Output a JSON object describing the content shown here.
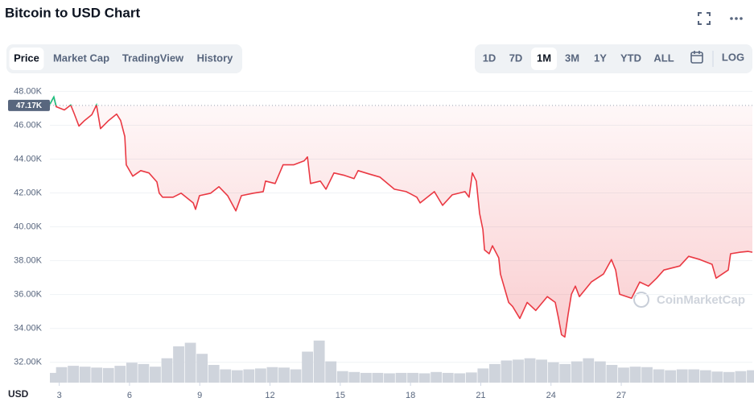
{
  "header": {
    "title": "Bitcoin to USD Chart"
  },
  "tabs": {
    "items": [
      "Price",
      "Market Cap",
      "TradingView",
      "History"
    ],
    "active": 0
  },
  "ranges": {
    "items": [
      "1D",
      "7D",
      "1M",
      "3M",
      "1Y",
      "YTD",
      "ALL"
    ],
    "active": 2,
    "log": "LOG"
  },
  "chart_data": {
    "type": "line",
    "color": "#ea3943",
    "up_color": "#16c784",
    "x": [
      2.6,
      2.77,
      2.87,
      3.22,
      3.49,
      3.63,
      3.84,
      4.08,
      4.39,
      4.59,
      4.76,
      5.11,
      5.45,
      5.62,
      5.8,
      5.86,
      6.14,
      6.48,
      6.83,
      7.17,
      7.27,
      7.41,
      7.86,
      8.2,
      8.72,
      8.82,
      8.99,
      9.47,
      9.82,
      10.19,
      10.54,
      10.78,
      11.29,
      11.71,
      11.81,
      12.22,
      12.56,
      13.01,
      13.46,
      13.6,
      13.73,
      14.15,
      14.39,
      14.73,
      15.18,
      15.59,
      15.76,
      16.21,
      16.69,
      17.31,
      17.82,
      18.27,
      18.41,
      19.02,
      19.37,
      19.78,
      20.33,
      20.5,
      20.64,
      20.81,
      20.95,
      21.09,
      21.16,
      21.36,
      21.5,
      21.77,
      21.84,
      22.19,
      22.36,
      22.67,
      22.98,
      23.35,
      23.84,
      24.18,
      24.32,
      24.45,
      24.59,
      24.73,
      24.87,
      25.04,
      25.21,
      25.72,
      26.24,
      26.58,
      26.76,
      26.93,
      27.44,
      27.79,
      28.16,
      28.51,
      28.82,
      29.5,
      29.88,
      30.36,
      30.88,
      31.05,
      31.57,
      31.67,
      32.08,
      32.42,
      32.6
    ],
    "values": [
      47240,
      47670,
      47090,
      46900,
      47190,
      46710,
      45950,
      46280,
      46620,
      47190,
      45800,
      46280,
      46660,
      46280,
      45330,
      43660,
      42990,
      43320,
      43180,
      42650,
      41990,
      41750,
      41750,
      41990,
      41410,
      41030,
      41840,
      41990,
      42370,
      41840,
      40940,
      41840,
      41990,
      42080,
      42700,
      42560,
      43660,
      43660,
      43900,
      44130,
      42560,
      42700,
      42220,
      43180,
      43040,
      42850,
      43320,
      43130,
      42940,
      42220,
      42080,
      41750,
      41410,
      42080,
      41270,
      41890,
      42080,
      41750,
      43180,
      42700,
      40790,
      39840,
      38640,
      38410,
      38880,
      38170,
      37210,
      35540,
      35300,
      34590,
      35540,
      35060,
      35880,
      35540,
      34590,
      33630,
      33490,
      34830,
      36020,
      36500,
      35880,
      36740,
      37210,
      38070,
      37450,
      36020,
      35780,
      36740,
      36500,
      36970,
      37450,
      37690,
      38260,
      38070,
      37790,
      36970,
      37450,
      38410,
      38500,
      38550,
      38500
    ],
    "xlim": [
      2.6,
      32.6
    ],
    "xticks": [
      3,
      6,
      9,
      12,
      15,
      18,
      21,
      24,
      27
    ],
    "ylim": [
      30800,
      48400
    ],
    "yticks": [
      {
        "value": 32000,
        "label": "32.00K"
      },
      {
        "value": 34000,
        "label": "34.00K"
      },
      {
        "value": 36000,
        "label": "36.00K"
      },
      {
        "value": 38000,
        "label": "38.00K"
      },
      {
        "value": 40000,
        "label": "40.00K"
      },
      {
        "value": 42000,
        "label": "42.00K"
      },
      {
        "value": 44000,
        "label": "44.00K"
      },
      {
        "value": 46000,
        "label": "46.00K"
      },
      {
        "value": 48000,
        "label": "48.00K"
      }
    ],
    "grid": true,
    "reference": {
      "value": 47170,
      "label": "47.17K"
    },
    "axis_unit": "USD",
    "watermark": "CoinMarketCap",
    "volume": {
      "color": "#cfd4dc",
      "x": [
        2.6,
        3.1,
        3.6,
        4.1,
        4.6,
        5.1,
        5.6,
        6.1,
        6.6,
        7.1,
        7.6,
        8.1,
        8.6,
        9.1,
        9.6,
        10.1,
        10.6,
        11.1,
        11.6,
        12.1,
        12.6,
        13.1,
        13.6,
        14.1,
        14.6,
        15.1,
        15.6,
        16.1,
        16.6,
        17.1,
        17.6,
        18.1,
        18.6,
        19.1,
        19.6,
        20.1,
        20.6,
        21.1,
        21.6,
        22.1,
        22.6,
        23.1,
        23.6,
        24.1,
        24.6,
        25.1,
        25.6,
        26.1,
        26.6,
        27.1,
        27.6,
        28.1,
        28.6,
        29.1,
        29.6,
        30.1,
        30.6,
        31.1,
        31.6,
        32.1,
        32.6
      ],
      "values": [
        22,
        35,
        38,
        36,
        34,
        33,
        38,
        45,
        42,
        36,
        55,
        82,
        90,
        65,
        40,
        30,
        28,
        30,
        32,
        35,
        34,
        30,
        70,
        95,
        48,
        26,
        24,
        22,
        22,
        21,
        22,
        22,
        21,
        24,
        22,
        21,
        23,
        32,
        42,
        50,
        52,
        55,
        52,
        46,
        42,
        48,
        55,
        48,
        40,
        34,
        36,
        35,
        30,
        28,
        30,
        30,
        28,
        25,
        24,
        26,
        28
      ],
      "ylim": [
        0,
        100
      ]
    }
  }
}
